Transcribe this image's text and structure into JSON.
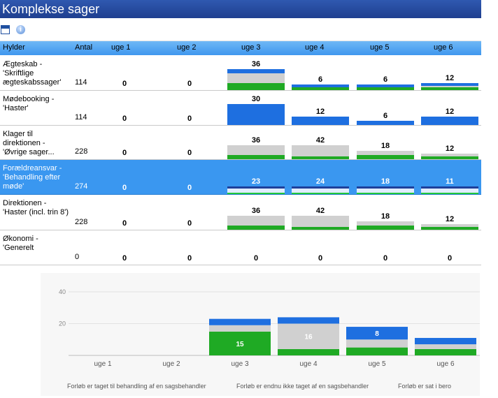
{
  "window": {
    "title": "Komplekse sager"
  },
  "toolbar": {
    "icons": [
      "window-icon",
      "info-icon"
    ]
  },
  "table": {
    "headers": {
      "name": "Hylder",
      "count": "Antal",
      "weeks": [
        "uge 1",
        "uge 2",
        "uge 3",
        "uge 4",
        "uge 5",
        "uge 6"
      ]
    },
    "rows": [
      {
        "name": "Ægteskab - 'Skriftlige ægteskabssager'",
        "count": "114",
        "weeks": [
          "0",
          "0",
          "36",
          "6",
          "6",
          "12"
        ],
        "selected": false
      },
      {
        "name": "Mødebooking - 'Haster'",
        "count": "114",
        "weeks": [
          "0",
          "0",
          "30",
          "12",
          "6",
          "12"
        ],
        "selected": false
      },
      {
        "name": "Klager til direktionen - 'Øvrige sager...",
        "count": "228",
        "weeks": [
          "0",
          "0",
          "36",
          "42",
          "18",
          "12"
        ],
        "selected": false
      },
      {
        "name": "Forældreansvar - 'Behandling efter møde'",
        "count": "274",
        "weeks": [
          "0",
          "0",
          "23",
          "24",
          "18",
          "11"
        ],
        "selected": true
      },
      {
        "name": "Direktionen - 'Haster (incl. trin 8')",
        "count": "228",
        "weeks": [
          "0",
          "0",
          "36",
          "42",
          "18",
          "12"
        ],
        "selected": false
      },
      {
        "name": "Økonomi - 'Generelt",
        "count": "0",
        "weeks": [
          "0",
          "0",
          "0",
          "0",
          "0",
          "0"
        ],
        "selected": false
      }
    ]
  },
  "colors": {
    "blue": "#1e6fe0",
    "gray": "#d0d0d0",
    "green": "#1faa24",
    "header": "#4a9ff0",
    "selected_row": "#3a97f0"
  },
  "chart_data": {
    "type": "bar",
    "stacked": true,
    "categories": [
      "uge 1",
      "uge 2",
      "uge 3",
      "uge 4",
      "uge 5",
      "uge 6"
    ],
    "series": [
      {
        "name": "Forløb er taget til behandling af en sagsbehandler",
        "values": [
          0,
          0,
          15,
          4,
          5,
          4
        ],
        "color": "#1faa24"
      },
      {
        "name": "Forløb er endnu ikke taget af en sagsbehandler",
        "values": [
          0,
          0,
          4,
          16,
          5,
          3
        ],
        "color": "#d0d0d0"
      },
      {
        "name": "Forløb er sat i bero",
        "values": [
          0,
          0,
          4,
          4,
          8,
          4
        ],
        "color": "#1e6fe0"
      }
    ],
    "segment_labels": [
      null,
      null,
      [
        "15",
        null,
        null
      ],
      [
        null,
        "16",
        null
      ],
      [
        null,
        null,
        "8"
      ],
      [
        null,
        null,
        null
      ]
    ],
    "yticks": [
      "20",
      "40"
    ],
    "ylim": [
      0,
      40
    ],
    "grid": true,
    "legend_position": "bottom"
  }
}
